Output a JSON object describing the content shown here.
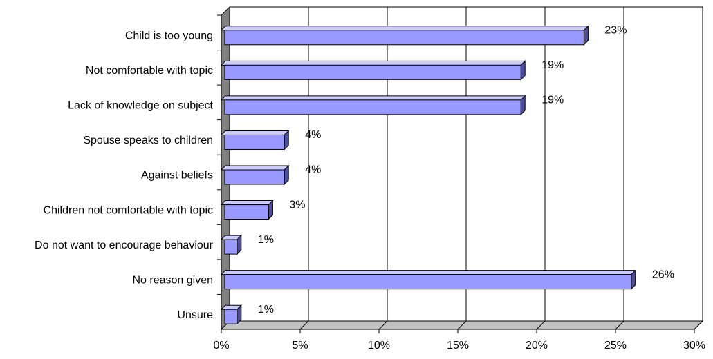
{
  "chart_data": {
    "type": "bar",
    "orientation": "horizontal",
    "three_d": true,
    "categories": [
      "Child is too young",
      "Not comfortable with topic",
      "Lack of knowledge on subject",
      "Spouse speaks to children",
      "Against beliefs",
      "Children not comfortable with topic",
      "Do not want to encourage behaviour",
      "No reason given",
      "Unsure"
    ],
    "values": [
      23,
      19,
      19,
      4,
      4,
      3,
      1,
      26,
      1
    ],
    "value_labels": [
      "23%",
      "19%",
      "19%",
      "4%",
      "4%",
      "3%",
      "1%",
      "26%",
      "1%"
    ],
    "xlim": [
      0,
      30
    ],
    "x_ticks": [
      0,
      5,
      10,
      15,
      20,
      25,
      30
    ],
    "x_tick_labels": [
      "0%",
      "5%",
      "10%",
      "15%",
      "20%",
      "25%",
      "30%"
    ],
    "grid": "vertical",
    "legend": "none",
    "colors": {
      "bar_front": "#9999ff",
      "bar_top": "#ccccff",
      "bar_side": "#4d4d99",
      "wall_left": "#808080",
      "floor": "#c0c0c0",
      "gridline": "#000000"
    }
  }
}
